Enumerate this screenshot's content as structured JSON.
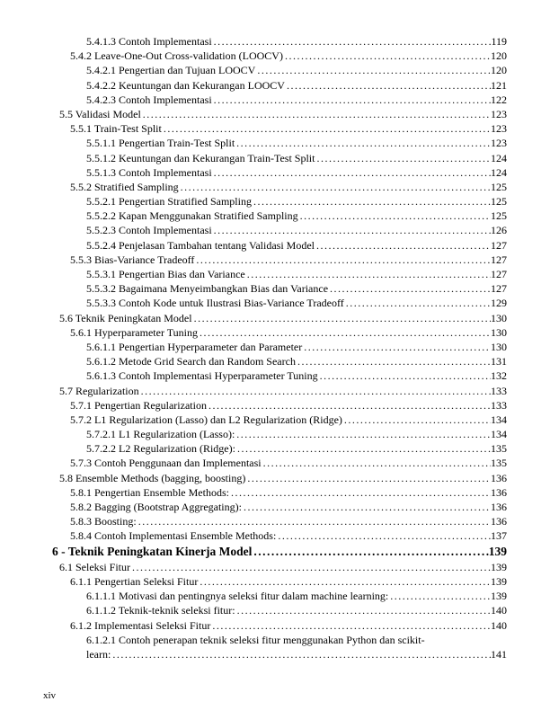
{
  "page_roman": "xiv",
  "entries": [
    {
      "level": "subsubsection",
      "label": "5.4.1.3  Contoh Implementasi",
      "page": "119"
    },
    {
      "level": "subsection",
      "label": "5.4.2 Leave-One-Out Cross-validation (LOOCV)",
      "page": "120"
    },
    {
      "level": "subsubsection",
      "label": "5.4.2.1  Pengertian dan Tujuan LOOCV",
      "page": "120"
    },
    {
      "level": "subsubsection",
      "label": "5.4.2.2  Keuntungan dan Kekurangan LOOCV",
      "page": "121"
    },
    {
      "level": "subsubsection",
      "label": "5.4.2.3  Contoh Implementasi",
      "page": "122"
    },
    {
      "level": "section",
      "label": "5.5 Validasi Model",
      "page": "123"
    },
    {
      "level": "subsection",
      "label": "5.5.1 Train-Test Split",
      "page": "123"
    },
    {
      "level": "subsubsection",
      "label": "5.5.1.1  Pengertian Train-Test Split",
      "page": "123"
    },
    {
      "level": "subsubsection",
      "label": "5.5.1.2  Keuntungan dan Kekurangan Train-Test Split",
      "page": "124"
    },
    {
      "level": "subsubsection",
      "label": "5.5.1.3  Contoh Implementasi",
      "page": "124"
    },
    {
      "level": "subsection",
      "label": "5.5.2 Stratified Sampling",
      "page": "125"
    },
    {
      "level": "subsubsection",
      "label": "5.5.2.1  Pengertian Stratified Sampling",
      "page": "125"
    },
    {
      "level": "subsubsection",
      "label": "5.5.2.2  Kapan Menggunakan Stratified Sampling",
      "page": "125"
    },
    {
      "level": "subsubsection",
      "label": "5.5.2.3  Contoh Implementasi",
      "page": "126"
    },
    {
      "level": "subsubsection",
      "label": "5.5.2.4  Penjelasan Tambahan tentang Validasi Model",
      "page": "127"
    },
    {
      "level": "subsection",
      "label": "5.5.3 Bias-Variance Tradeoff",
      "page": "127"
    },
    {
      "level": "subsubsection",
      "label": "5.5.3.1  Pengertian Bias dan Variance",
      "page": "127"
    },
    {
      "level": "subsubsection",
      "label": "5.5.3.2  Bagaimana Menyeimbangkan Bias dan Variance",
      "page": "127"
    },
    {
      "level": "subsubsection",
      "label": "5.5.3.3  Contoh Kode untuk Ilustrasi Bias-Variance Tradeoff",
      "page": "129"
    },
    {
      "level": "section",
      "label": "5.6 Teknik Peningkatan Model",
      "page": "130"
    },
    {
      "level": "subsection",
      "label": "5.6.1 Hyperparameter Tuning",
      "page": "130"
    },
    {
      "level": "subsubsection",
      "label": "5.6.1.1  Pengertian Hyperparameter dan Parameter",
      "page": "130"
    },
    {
      "level": "subsubsection",
      "label": "5.6.1.2  Metode Grid Search dan Random Search",
      "page": "131"
    },
    {
      "level": "subsubsection",
      "label": "5.6.1.3  Contoh Implementasi Hyperparameter Tuning",
      "page": "132"
    },
    {
      "level": "section",
      "label": "5.7 Regularization",
      "page": "133"
    },
    {
      "level": "subsection",
      "label": "5.7.1 Pengertian Regularization",
      "page": "133"
    },
    {
      "level": "subsection",
      "label": "5.7.2 L1 Regularization (Lasso) dan L2 Regularization (Ridge)",
      "page": "134"
    },
    {
      "level": "subsubsection",
      "label": "5.7.2.1  L1 Regularization (Lasso):",
      "page": "134"
    },
    {
      "level": "subsubsection",
      "label": "5.7.2.2  L2 Regularization (Ridge):",
      "page": "135"
    },
    {
      "level": "subsection",
      "label": "5.7.3 Contoh Penggunaan dan Implementasi",
      "page": "135"
    },
    {
      "level": "section",
      "label": "5.8 Ensemble Methods (bagging, boosting)",
      "page": "136"
    },
    {
      "level": "subsection",
      "label": "5.8.1 Pengertian Ensemble Methods:",
      "page": "136"
    },
    {
      "level": "subsection",
      "label": "5.8.2 Bagging (Bootstrap Aggregating):",
      "page": "136"
    },
    {
      "level": "subsection",
      "label": "5.8.3 Boosting:",
      "page": "136"
    },
    {
      "level": "subsection",
      "label": "5.8.4 Contoh Implementasi Ensemble Methods:",
      "page": "137"
    },
    {
      "level": "chapter",
      "label": "6 - Teknik Peningkatan Kinerja Model",
      "page": "139"
    },
    {
      "level": "section",
      "label": "6.1 Seleksi Fitur",
      "page": "139"
    },
    {
      "level": "subsection",
      "label": "6.1.1 Pengertian Seleksi Fitur",
      "page": "139"
    },
    {
      "level": "subsubsection",
      "label": "6.1.1.1  Motivasi dan pentingnya seleksi fitur dalam machine learning:",
      "page": "139"
    },
    {
      "level": "subsubsection",
      "label": "6.1.1.2  Teknik-teknik seleksi fitur:",
      "page": "140"
    },
    {
      "level": "subsection",
      "label": "6.1.2 Implementasi Seleksi Fitur",
      "page": "140"
    },
    {
      "level": "subsubsection",
      "label": "6.1.2.1  Contoh penerapan teknik seleksi fitur menggunakan Python dan scikit-learn:",
      "page": "141",
      "wrap": true,
      "wrap_tail": "learn:"
    }
  ]
}
